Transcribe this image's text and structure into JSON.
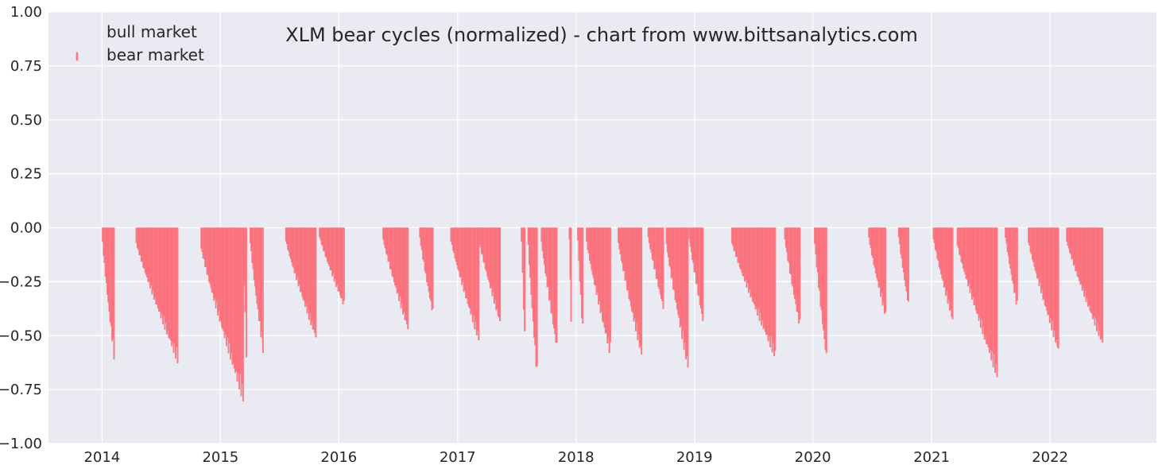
{
  "chart_data": {
    "type": "bar",
    "title": "XLM bear cycles (normalized)  - chart from www.bittsanalytics.com",
    "xlabel": "",
    "ylabel": "",
    "ylim": [
      -1.0,
      1.0
    ],
    "y_ticks": [
      "1.00",
      "0.75",
      "0.50",
      "0.25",
      "0.00",
      "−0.25",
      "−0.50",
      "−0.75",
      "−1.00"
    ],
    "x_ticks": [
      "2014",
      "2015",
      "2016",
      "2017",
      "2018",
      "2019",
      "2020",
      "2021",
      "2022"
    ],
    "grid": true,
    "legend_position": "top-left",
    "colors": {
      "bear": "#ff7a85",
      "bear_edge": "#e8606c",
      "background": "#eaeaf2",
      "grid": "#ffffff",
      "text": "#262626"
    },
    "series": [
      {
        "name": "bull market",
        "values": []
      },
      {
        "name": "bear market",
        "segments": [
          {
            "start": "2014-01-01",
            "end": "2014-02-05",
            "min": -0.61
          },
          {
            "start": "2014-04-15",
            "end": "2014-08-20",
            "min": -0.63
          },
          {
            "start": "2014-11-01",
            "end": "2015-03-10",
            "min": -0.81
          },
          {
            "start": "2015-03-10",
            "end": "2015-03-20",
            "min": -0.6
          },
          {
            "start": "2015-04-01",
            "end": "2015-05-10",
            "min": -0.58
          },
          {
            "start": "2015-07-20",
            "end": "2015-10-20",
            "min": -0.52
          },
          {
            "start": "2015-11-01",
            "end": "2016-01-15",
            "min": -0.37
          },
          {
            "start": "2016-05-15",
            "end": "2016-07-30",
            "min": -0.48
          },
          {
            "start": "2016-09-05",
            "end": "2016-10-15",
            "min": -0.41
          },
          {
            "start": "2016-12-10",
            "end": "2017-03-05",
            "min": -0.53
          },
          {
            "start": "2017-03-05",
            "end": "2017-05-10",
            "min": -0.45
          },
          {
            "start": "2017-07-15",
            "end": "2017-07-25",
            "min": -0.52
          },
          {
            "start": "2017-08-05",
            "end": "2017-09-01",
            "min": -0.71
          },
          {
            "start": "2017-09-15",
            "end": "2017-11-01",
            "min": -0.57
          },
          {
            "start": "2017-12-10",
            "end": "2017-12-15",
            "min": -0.44
          },
          {
            "start": "2018-01-05",
            "end": "2018-01-20",
            "min": -0.5
          },
          {
            "start": "2018-02-01",
            "end": "2018-04-15",
            "min": -0.6
          },
          {
            "start": "2018-05-10",
            "end": "2018-07-20",
            "min": -0.6
          },
          {
            "start": "2018-08-10",
            "end": "2018-09-25",
            "min": -0.38
          },
          {
            "start": "2018-10-05",
            "end": "2018-12-10",
            "min": -0.66
          },
          {
            "start": "2018-12-15",
            "end": "2019-01-25",
            "min": -0.44
          },
          {
            "start": "2019-04-25",
            "end": "2019-09-05",
            "min": -0.61
          },
          {
            "start": "2019-10-05",
            "end": "2019-11-20",
            "min": -0.47
          },
          {
            "start": "2020-01-05",
            "end": "2020-02-10",
            "min": -0.62
          },
          {
            "start": "2020-06-20",
            "end": "2020-08-10",
            "min": -0.42
          },
          {
            "start": "2020-09-20",
            "end": "2020-10-20",
            "min": -0.37
          },
          {
            "start": "2021-01-05",
            "end": "2021-03-05",
            "min": -0.44
          },
          {
            "start": "2021-03-20",
            "end": "2021-07-20",
            "min": -0.7
          },
          {
            "start": "2021-08-15",
            "end": "2021-09-20",
            "min": -0.38
          },
          {
            "start": "2021-10-25",
            "end": "2022-01-25",
            "min": -0.58
          },
          {
            "start": "2022-02-20",
            "end": "2022-06-10",
            "min": -0.55
          }
        ]
      }
    ]
  }
}
